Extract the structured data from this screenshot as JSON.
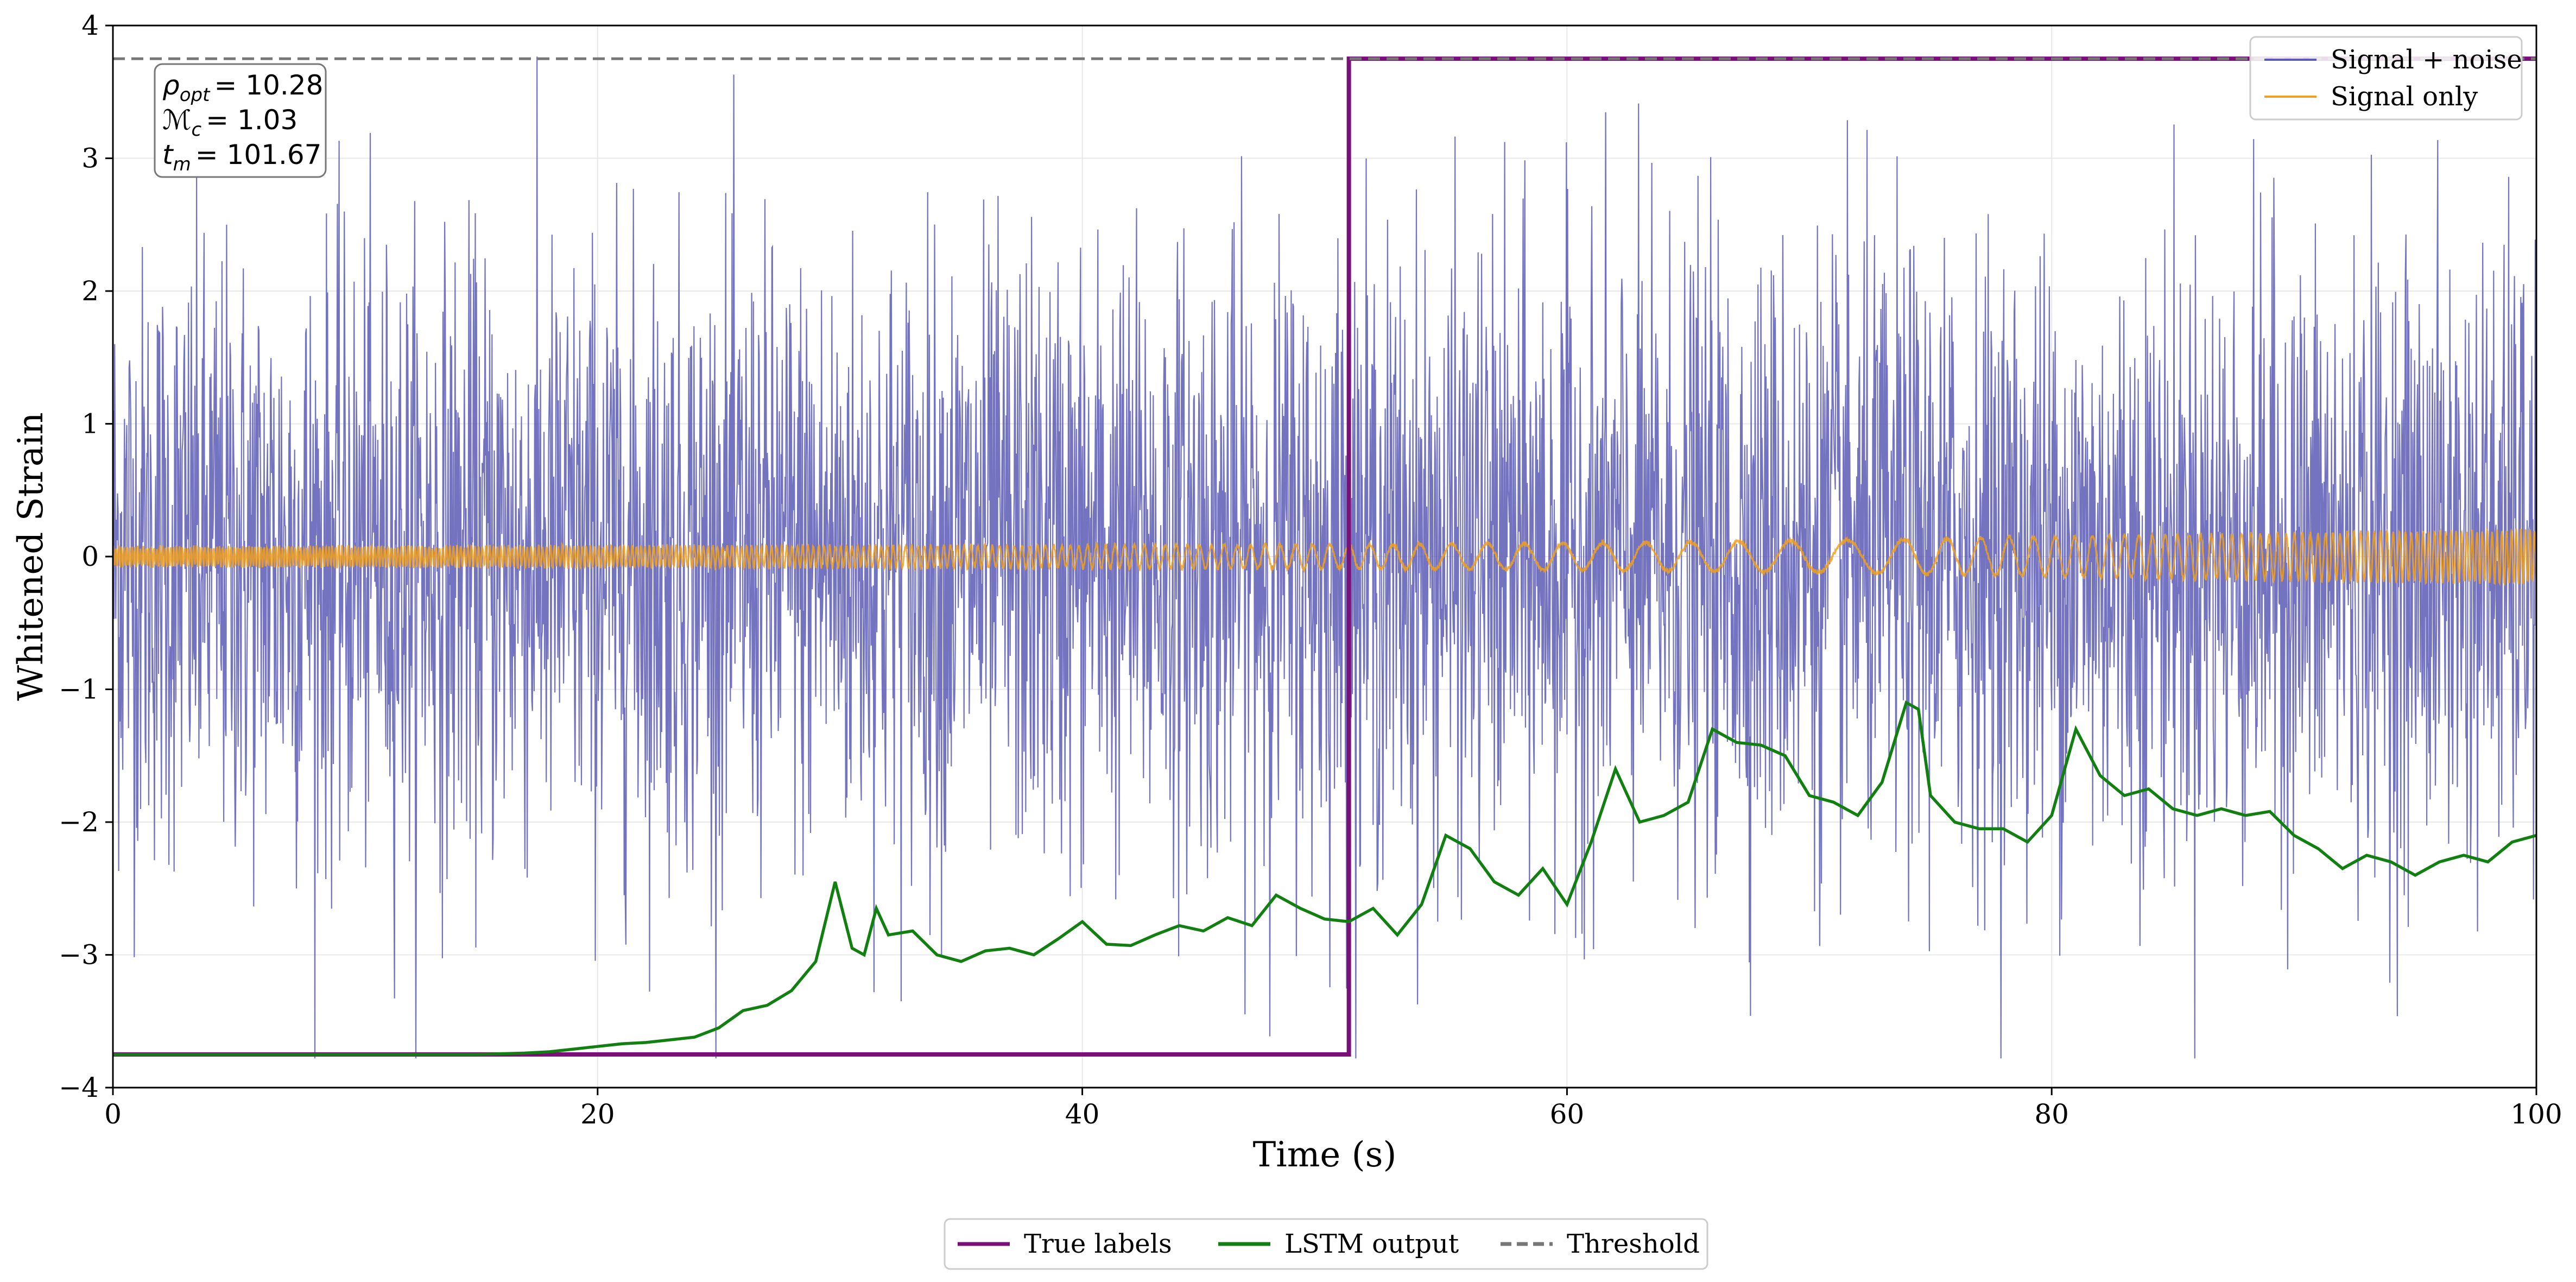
{
  "chart_data": {
    "type": "line",
    "title": "",
    "xlabel": "Time (s)",
    "ylabel": "Whitened Strain",
    "xlim": [
      0,
      100
    ],
    "ylim": [
      -4,
      4
    ],
    "xticks": [
      0,
      20,
      40,
      60,
      80,
      100
    ],
    "yticks": [
      -4,
      -3,
      -2,
      -1,
      0,
      1,
      2,
      3,
      4
    ],
    "xtick_labels": [
      "0",
      "20",
      "40",
      "60",
      "80",
      "100"
    ],
    "ytick_labels": [
      "−4",
      "−3",
      "−2",
      "−1",
      "0",
      "1",
      "2",
      "3",
      "4"
    ],
    "grid": true,
    "annotation": {
      "lines": [
        {
          "sym": "ρ",
          "sub": "opt",
          "value": "= 10.28"
        },
        {
          "sym": "ℳ",
          "sub": "c",
          "value": "= 1.03"
        },
        {
          "sym": "t",
          "sub": "m",
          "value": "= 101.67"
        }
      ]
    },
    "legend_upper": {
      "placement": "top-right",
      "entries": [
        {
          "label": "Signal + noise",
          "color": "#5b5bb5"
        },
        {
          "label": "Signal only",
          "color": "#f0a020"
        }
      ]
    },
    "legend_lower": {
      "placement": "bottom-center",
      "entries": [
        {
          "label": "True labels",
          "color": "#7a0f7a",
          "style": "solid"
        },
        {
          "label": "LSTM output",
          "color": "#118011",
          "style": "solid"
        },
        {
          "label": "Threshold",
          "color": "#777777",
          "style": "dashed"
        }
      ]
    },
    "series": [
      {
        "name": "Signal + noise",
        "color": "#5b5bb5",
        "kind": "noise",
        "note_rendering": "random noise, std approx 1.2, clipped to [-3.8, 3.8]"
      },
      {
        "name": "Signal only",
        "color": "#f0a020",
        "kind": "chirp",
        "amplitude_envelope": [
          [
            0,
            0.07
          ],
          [
            50,
            0.09
          ],
          [
            60,
            0.1
          ],
          [
            70,
            0.12
          ],
          [
            80,
            0.15
          ],
          [
            90,
            0.18
          ],
          [
            100,
            0.2
          ]
        ]
      },
      {
        "name": "True labels",
        "color": "#7a0f7a",
        "kind": "step",
        "x": [
          0,
          51,
          51,
          100
        ],
        "y": [
          -3.75,
          -3.75,
          3.75,
          3.75
        ]
      },
      {
        "name": "LSTM output",
        "color": "#118011",
        "kind": "line",
        "x": [
          0,
          5,
          10,
          15,
          17,
          18,
          19,
          20,
          21,
          22,
          23,
          24,
          25,
          26,
          27,
          28,
          29,
          29.8,
          30.5,
          31,
          31.5,
          32,
          33,
          34,
          35,
          36,
          37,
          38,
          39,
          40,
          41,
          42,
          43,
          44,
          45,
          46,
          47,
          48,
          49,
          50,
          51,
          52,
          53,
          54,
          55,
          56,
          57,
          58,
          59,
          60,
          61,
          62,
          63,
          64,
          65,
          66,
          67,
          68,
          69,
          70,
          71,
          72,
          73,
          74,
          74.5,
          75,
          76,
          77,
          78,
          79,
          80,
          81,
          82,
          83,
          84,
          85,
          86,
          87,
          88,
          89,
          90,
          91,
          92,
          93,
          94,
          95,
          96,
          97,
          98,
          99,
          100
        ],
        "y": [
          -3.75,
          -3.75,
          -3.75,
          -3.75,
          -3.74,
          -3.73,
          -3.71,
          -3.69,
          -3.67,
          -3.66,
          -3.64,
          -3.62,
          -3.55,
          -3.42,
          -3.38,
          -3.27,
          -3.05,
          -2.45,
          -2.95,
          -3.0,
          -2.65,
          -2.85,
          -2.82,
          -3.0,
          -3.05,
          -2.97,
          -2.95,
          -3.0,
          -2.88,
          -2.75,
          -2.92,
          -2.93,
          -2.85,
          -2.78,
          -2.82,
          -2.72,
          -2.78,
          -2.55,
          -2.65,
          -2.73,
          -2.75,
          -2.65,
          -2.85,
          -2.62,
          -2.1,
          -2.2,
          -2.45,
          -2.55,
          -2.35,
          -2.62,
          -2.15,
          -1.6,
          -2.0,
          -1.95,
          -1.85,
          -1.3,
          -1.4,
          -1.42,
          -1.5,
          -1.8,
          -1.85,
          -1.95,
          -1.7,
          -1.1,
          -1.15,
          -1.8,
          -2.0,
          -2.05,
          -2.05,
          -2.15,
          -1.95,
          -1.3,
          -1.65,
          -1.8,
          -1.75,
          -1.9,
          -1.95,
          -1.9,
          -1.95,
          -1.92,
          -2.1,
          -2.2,
          -2.35,
          -2.25,
          -2.3,
          -2.4,
          -2.3,
          -2.25,
          -2.3,
          -2.15,
          -2.1
        ]
      },
      {
        "name": "Threshold",
        "color": "#777777",
        "kind": "hline",
        "y": 3.75
      }
    ]
  }
}
